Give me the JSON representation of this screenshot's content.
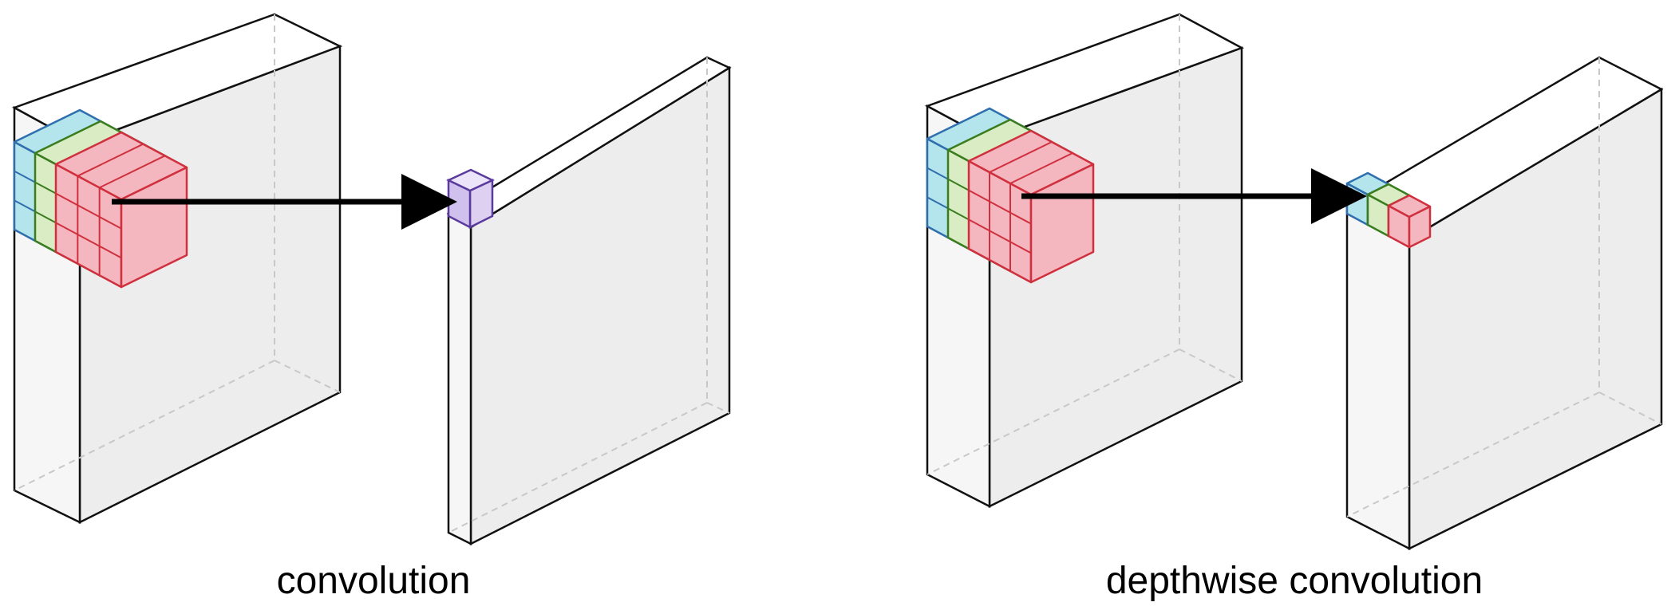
{
  "captions": {
    "left": "convolution",
    "right": "depthwise convolution"
  },
  "colors": {
    "outline": "#111111",
    "hidden_edge": "#c8c8c8",
    "front_face": "#ededed",
    "side_face": "#f6f6f6",
    "top_face": "#ffffff",
    "channel_blue_fill": "#b4e4ec",
    "channel_blue_stroke": "#2f6fad",
    "channel_green_fill": "#d9ecc4",
    "channel_green_stroke": "#3a7d1e",
    "channel_red_fill": "#f4b6bf",
    "channel_red_stroke": "#d0303e",
    "output_purple_fill": "#ddd0f1",
    "output_purple_stroke": "#5b3a9e",
    "arrow": "#000000"
  }
}
